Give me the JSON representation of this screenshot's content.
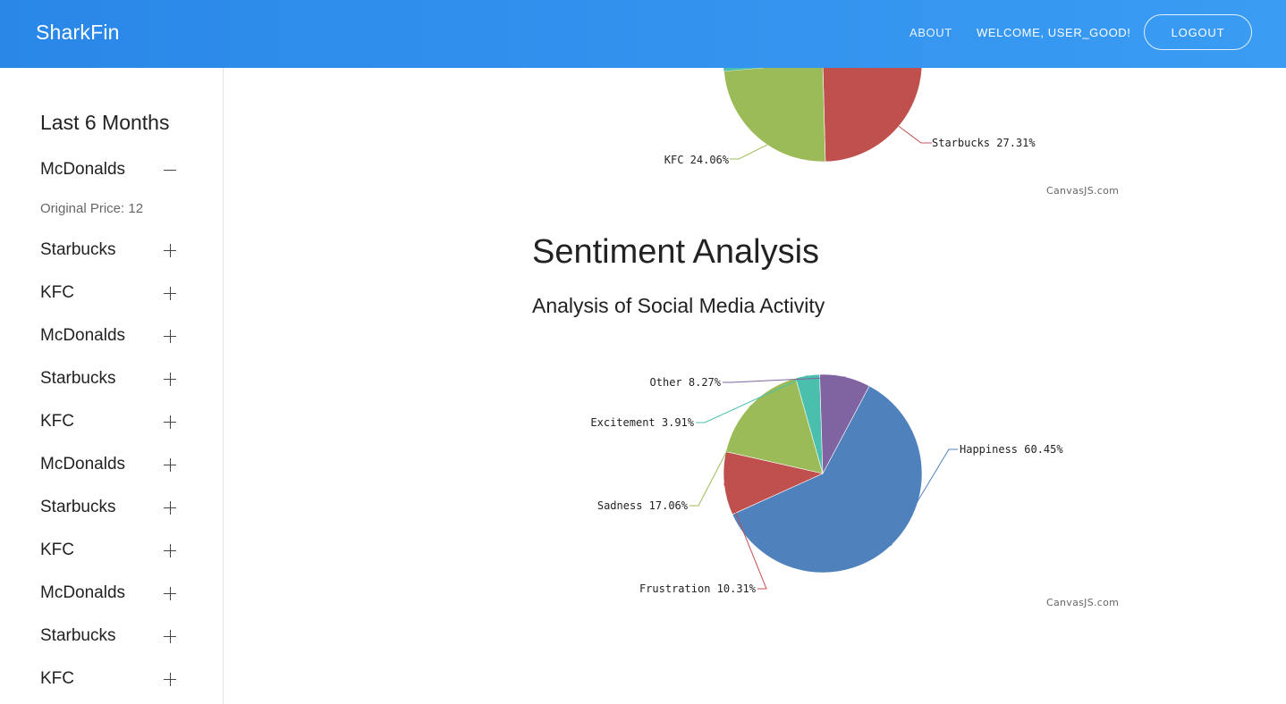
{
  "header": {
    "brand": "SharkFin",
    "about": "ABOUT",
    "welcome": "WELCOME, USER_GOOD!",
    "logout": "LOGOUT"
  },
  "sidebar": {
    "title": "Last 6 Months",
    "expanded_detail": "Original Price: 12",
    "items": [
      {
        "label": "McDonalds",
        "state": "expanded"
      },
      {
        "label": "Starbucks",
        "state": "collapsed"
      },
      {
        "label": "KFC",
        "state": "collapsed"
      },
      {
        "label": "McDonalds",
        "state": "collapsed"
      },
      {
        "label": "Starbucks",
        "state": "collapsed"
      },
      {
        "label": "KFC",
        "state": "collapsed"
      },
      {
        "label": "McDonalds",
        "state": "collapsed"
      },
      {
        "label": "Starbucks",
        "state": "collapsed"
      },
      {
        "label": "KFC",
        "state": "collapsed"
      },
      {
        "label": "McDonalds",
        "state": "collapsed"
      },
      {
        "label": "Starbucks",
        "state": "collapsed"
      },
      {
        "label": "KFC",
        "state": "collapsed"
      }
    ]
  },
  "main": {
    "credit_top": "CanvasJS.com",
    "sentiment_title": "Sentiment Analysis",
    "sentiment_subtitle": "Analysis of Social Media Activity",
    "credit_bottom": "CanvasJS.com"
  },
  "chart_data": [
    {
      "type": "pie",
      "note_visible": "partially visible (scrolled), only two labeled slices shown",
      "slices": [
        {
          "label": "Starbucks",
          "value": 27.31,
          "color": "#c0504e"
        },
        {
          "label": "KFC",
          "value": 24.06,
          "color": "#9bbb58"
        }
      ]
    },
    {
      "type": "pie",
      "slices": [
        {
          "label": "Happiness",
          "value": 60.45,
          "color": "#4f81bc"
        },
        {
          "label": "Frustration",
          "value": 10.31,
          "color": "#c0504e"
        },
        {
          "label": "Sadness",
          "value": 17.06,
          "color": "#9bbb58"
        },
        {
          "label": "Excitement",
          "value": 3.91,
          "color": "#4bbfae"
        },
        {
          "label": "Other",
          "value": 8.27,
          "color": "#8064a1"
        }
      ]
    }
  ]
}
